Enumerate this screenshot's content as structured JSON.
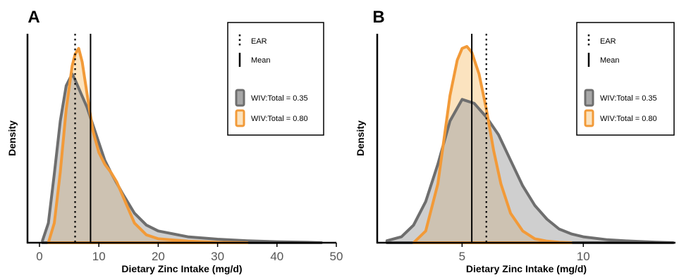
{
  "colors": {
    "series_gray_line": "#6e6e6e",
    "series_gray_fill": "#a8a8a8",
    "series_orange_line": "#f29a38",
    "series_orange_fill": "#fbe3bf",
    "overlap_fill": "#d2c2b0"
  },
  "chart_data": [
    {
      "type": "area",
      "panel_label": "A",
      "xlabel": "Dietary Zinc Intake (mg/d)",
      "ylabel": "Density",
      "xlim": [
        0,
        50
      ],
      "ylim": [
        0,
        1.0
      ],
      "xticks": [
        0,
        10,
        20,
        30,
        40,
        50
      ],
      "y_axis_ticks": false,
      "grid": false,
      "legend_position": "top-right",
      "legend": {
        "ear_label": "EAR",
        "mean_label": "Mean"
      },
      "vlines": {
        "ear": 6.0,
        "mean": 8.6
      },
      "series": [
        {
          "name": "WIV:Total = 0.35",
          "color": "gray",
          "x": [
            0.5,
            1.5,
            2.5,
            3.5,
            4.5,
            5.5,
            6.0,
            7.0,
            8.0,
            9.0,
            10.0,
            11.0,
            12.0,
            14.0,
            16.0,
            18.0,
            20.0,
            25.0,
            30.0,
            35.0,
            40.0,
            45.0,
            47.5
          ],
          "y": [
            0.01,
            0.1,
            0.35,
            0.62,
            0.8,
            0.86,
            0.83,
            0.76,
            0.69,
            0.6,
            0.51,
            0.42,
            0.36,
            0.25,
            0.15,
            0.09,
            0.06,
            0.03,
            0.018,
            0.01,
            0.005,
            0.002,
            0.0
          ]
        },
        {
          "name": "WIV:Total = 0.80",
          "color": "orange",
          "x": [
            1.5,
            2.5,
            3.5,
            4.5,
            5.5,
            6.0,
            6.6,
            7.2,
            8.0,
            9.0,
            10.0,
            11.0,
            12.0,
            13.0,
            14.0,
            15.0,
            16.0,
            18.0,
            20.0,
            25.0,
            30.0,
            35.0
          ],
          "y": [
            0.0,
            0.1,
            0.36,
            0.68,
            0.9,
            0.96,
            0.99,
            0.92,
            0.76,
            0.57,
            0.46,
            0.4,
            0.36,
            0.31,
            0.24,
            0.17,
            0.1,
            0.04,
            0.02,
            0.008,
            0.002,
            0.0
          ]
        }
      ]
    },
    {
      "type": "area",
      "panel_label": "B",
      "xlabel": "Dietary Zinc Intake (mg/d)",
      "ylabel": "Density",
      "xlim": [
        1.5,
        13.8
      ],
      "ylim": [
        0,
        1.0
      ],
      "xticks": [
        5,
        10
      ],
      "y_axis_ticks": false,
      "grid": false,
      "legend_position": "top-right",
      "legend": {
        "ear_label": "EAR",
        "mean_label": "Mean"
      },
      "vlines": {
        "ear": 6.0,
        "mean": 5.4
      },
      "series": [
        {
          "name": "WIV:Total = 0.35",
          "color": "gray",
          "x": [
            1.9,
            2.5,
            3.0,
            3.5,
            4.0,
            4.5,
            5.0,
            5.5,
            6.0,
            6.5,
            7.0,
            7.5,
            8.0,
            8.5,
            9.0,
            9.5,
            10.0,
            11.0,
            12.0,
            13.0,
            13.7
          ],
          "y": [
            0.01,
            0.03,
            0.09,
            0.21,
            0.4,
            0.62,
            0.73,
            0.71,
            0.64,
            0.55,
            0.42,
            0.29,
            0.19,
            0.12,
            0.07,
            0.045,
            0.03,
            0.015,
            0.008,
            0.003,
            0.0
          ]
        },
        {
          "name": "WIV:Total = 0.80",
          "color": "orange",
          "x": [
            3.0,
            3.5,
            4.0,
            4.5,
            4.8,
            5.0,
            5.2,
            5.4,
            5.7,
            6.0,
            6.3,
            6.6,
            7.0,
            7.5,
            8.0,
            8.5,
            9.0,
            9.5
          ],
          "y": [
            0.0,
            0.06,
            0.3,
            0.75,
            0.93,
            0.99,
            1.0,
            0.97,
            0.86,
            0.68,
            0.47,
            0.3,
            0.15,
            0.06,
            0.02,
            0.008,
            0.002,
            0.0
          ]
        }
      ]
    }
  ]
}
